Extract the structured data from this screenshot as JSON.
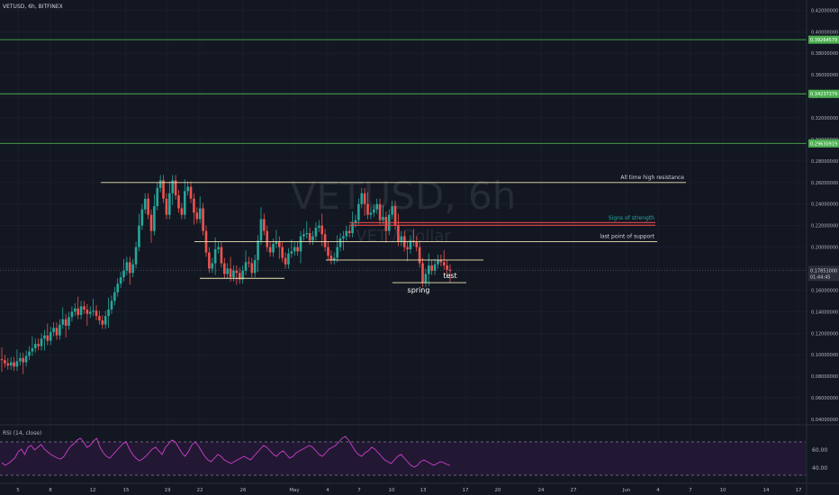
{
  "symbol_header": "VETUSD, 6h, BITFINEX",
  "watermark": {
    "title": "VETUSD, 6h",
    "subtitle": "VET / Dollar"
  },
  "colors": {
    "background": "#131722",
    "up": "#26a69a",
    "down": "#ef5350",
    "grid": "#1e2230",
    "hline_green": "#4caf50",
    "annotation_line": "#f0e6b4",
    "red_zone": "#e04848",
    "rsi_line": "#d03fd0",
    "rsi_band": "#2a1a3a"
  },
  "price_axis": {
    "ticks": [
      "0.42000000",
      "0.40000000",
      "0.38000000",
      "0.36000000",
      "0.34000000",
      "0.32000000",
      "0.30000000",
      "0.28000000",
      "0.26000000",
      "0.24000000",
      "0.22000000",
      "0.20000000",
      "0.18000000",
      "0.16000000",
      "0.14000000",
      "0.12000000",
      "0.10000000",
      "0.08000000",
      "0.06000000",
      "0.04000000"
    ],
    "price_labels": [
      {
        "text": "0.39264579",
        "value": 0.39264579
      },
      {
        "text": "0.34237379",
        "value": 0.34237379
      },
      {
        "text": "0.29630919",
        "value": 0.29630919
      }
    ],
    "current_price": {
      "text": "0.17851000",
      "countdown": "01:44:45",
      "value": 0.17851
    }
  },
  "time_axis": [
    "5",
    "8",
    "12",
    "15",
    "19",
    "22",
    "26",
    "May",
    "4",
    "7",
    "10",
    "13",
    "17",
    "20",
    "24",
    "27",
    "Jun",
    "4",
    "7",
    "10",
    "14",
    "17"
  ],
  "annotations": [
    {
      "text": "All time high resistance"
    },
    {
      "text": "Signs of strength"
    },
    {
      "text": "last point of support"
    },
    {
      "text": "spring"
    },
    {
      "text": "test"
    }
  ],
  "rsi": {
    "label": "RSI (14, close)",
    "ticks": [
      "60.00",
      "40.00"
    ],
    "upper": 70,
    "lower": 30
  },
  "chart_data": {
    "type": "candlestick",
    "title": "VETUSD, 6h",
    "ylim": [
      0.04,
      0.43
    ],
    "horizontal_lines": [
      0.39264579,
      0.34237379,
      0.29630919
    ],
    "resistance_levels": {
      "all_time_high_resistance": 0.26,
      "signs_of_strength": 0.2215,
      "last_point_of_support": 0.205,
      "spring_support": 0.167,
      "support_1": 0.188
    },
    "closes": [
      0.095,
      0.092,
      0.09,
      0.093,
      0.089,
      0.094,
      0.097,
      0.093,
      0.099,
      0.103,
      0.106,
      0.11,
      0.108,
      0.115,
      0.118,
      0.113,
      0.121,
      0.125,
      0.118,
      0.128,
      0.133,
      0.127,
      0.135,
      0.14,
      0.143,
      0.137,
      0.145,
      0.142,
      0.138,
      0.14,
      0.141,
      0.136,
      0.132,
      0.128,
      0.136,
      0.142,
      0.15,
      0.158,
      0.166,
      0.172,
      0.178,
      0.186,
      0.176,
      0.184,
      0.2,
      0.22,
      0.235,
      0.245,
      0.23,
      0.215,
      0.238,
      0.255,
      0.262,
      0.245,
      0.23,
      0.25,
      0.262,
      0.248,
      0.236,
      0.23,
      0.252,
      0.256,
      0.245,
      0.232,
      0.226,
      0.236,
      0.215,
      0.195,
      0.18,
      0.185,
      0.198,
      0.2,
      0.185,
      0.175,
      0.18,
      0.172,
      0.178,
      0.176,
      0.17,
      0.178,
      0.186,
      0.185,
      0.176,
      0.188,
      0.206,
      0.226,
      0.215,
      0.2,
      0.195,
      0.203,
      0.205,
      0.2,
      0.19,
      0.184,
      0.194,
      0.196,
      0.2,
      0.196,
      0.21,
      0.212,
      0.213,
      0.206,
      0.21,
      0.218,
      0.22,
      0.212,
      0.2,
      0.192,
      0.188,
      0.19,
      0.2,
      0.208,
      0.21,
      0.215,
      0.213,
      0.222,
      0.225,
      0.24,
      0.25,
      0.24,
      0.23,
      0.232,
      0.235,
      0.24,
      0.225,
      0.228,
      0.215,
      0.23,
      0.238,
      0.22,
      0.205,
      0.21,
      0.2,
      0.198,
      0.206,
      0.205,
      0.2,
      0.185,
      0.167,
      0.175,
      0.183,
      0.178,
      0.184,
      0.188,
      0.186,
      0.183,
      0.179,
      0.178
    ],
    "rsi_values": [
      43,
      40,
      42,
      45,
      48,
      55,
      58,
      52,
      60,
      62,
      57,
      60,
      63,
      58,
      55,
      52,
      50,
      48,
      47,
      50,
      56,
      61,
      64,
      68,
      70,
      66,
      60,
      62,
      67,
      70,
      60,
      54,
      50,
      48,
      52,
      56,
      60,
      64,
      66,
      58,
      52,
      48,
      45,
      47,
      50,
      54,
      58,
      60,
      56,
      52,
      60,
      64,
      68,
      66,
      60,
      54,
      50,
      55,
      62,
      66,
      62,
      56,
      50,
      46,
      44,
      48,
      52,
      50,
      46,
      44,
      42,
      44,
      46,
      48,
      50,
      48,
      46,
      50,
      54,
      58,
      62,
      60,
      56,
      52,
      50,
      54,
      56,
      52,
      48,
      50,
      54,
      56,
      58,
      60,
      62,
      60,
      56,
      52,
      50,
      54,
      58,
      60,
      62,
      66,
      70,
      72,
      68,
      62,
      56,
      52,
      50,
      54,
      56,
      60,
      58,
      54,
      50,
      46,
      44,
      42,
      46,
      50,
      52,
      48,
      44,
      40,
      38,
      40,
      44,
      46,
      44,
      42,
      40,
      42,
      44,
      43,
      41,
      40
    ],
    "rsi_ylim": [
      20,
      85
    ]
  }
}
